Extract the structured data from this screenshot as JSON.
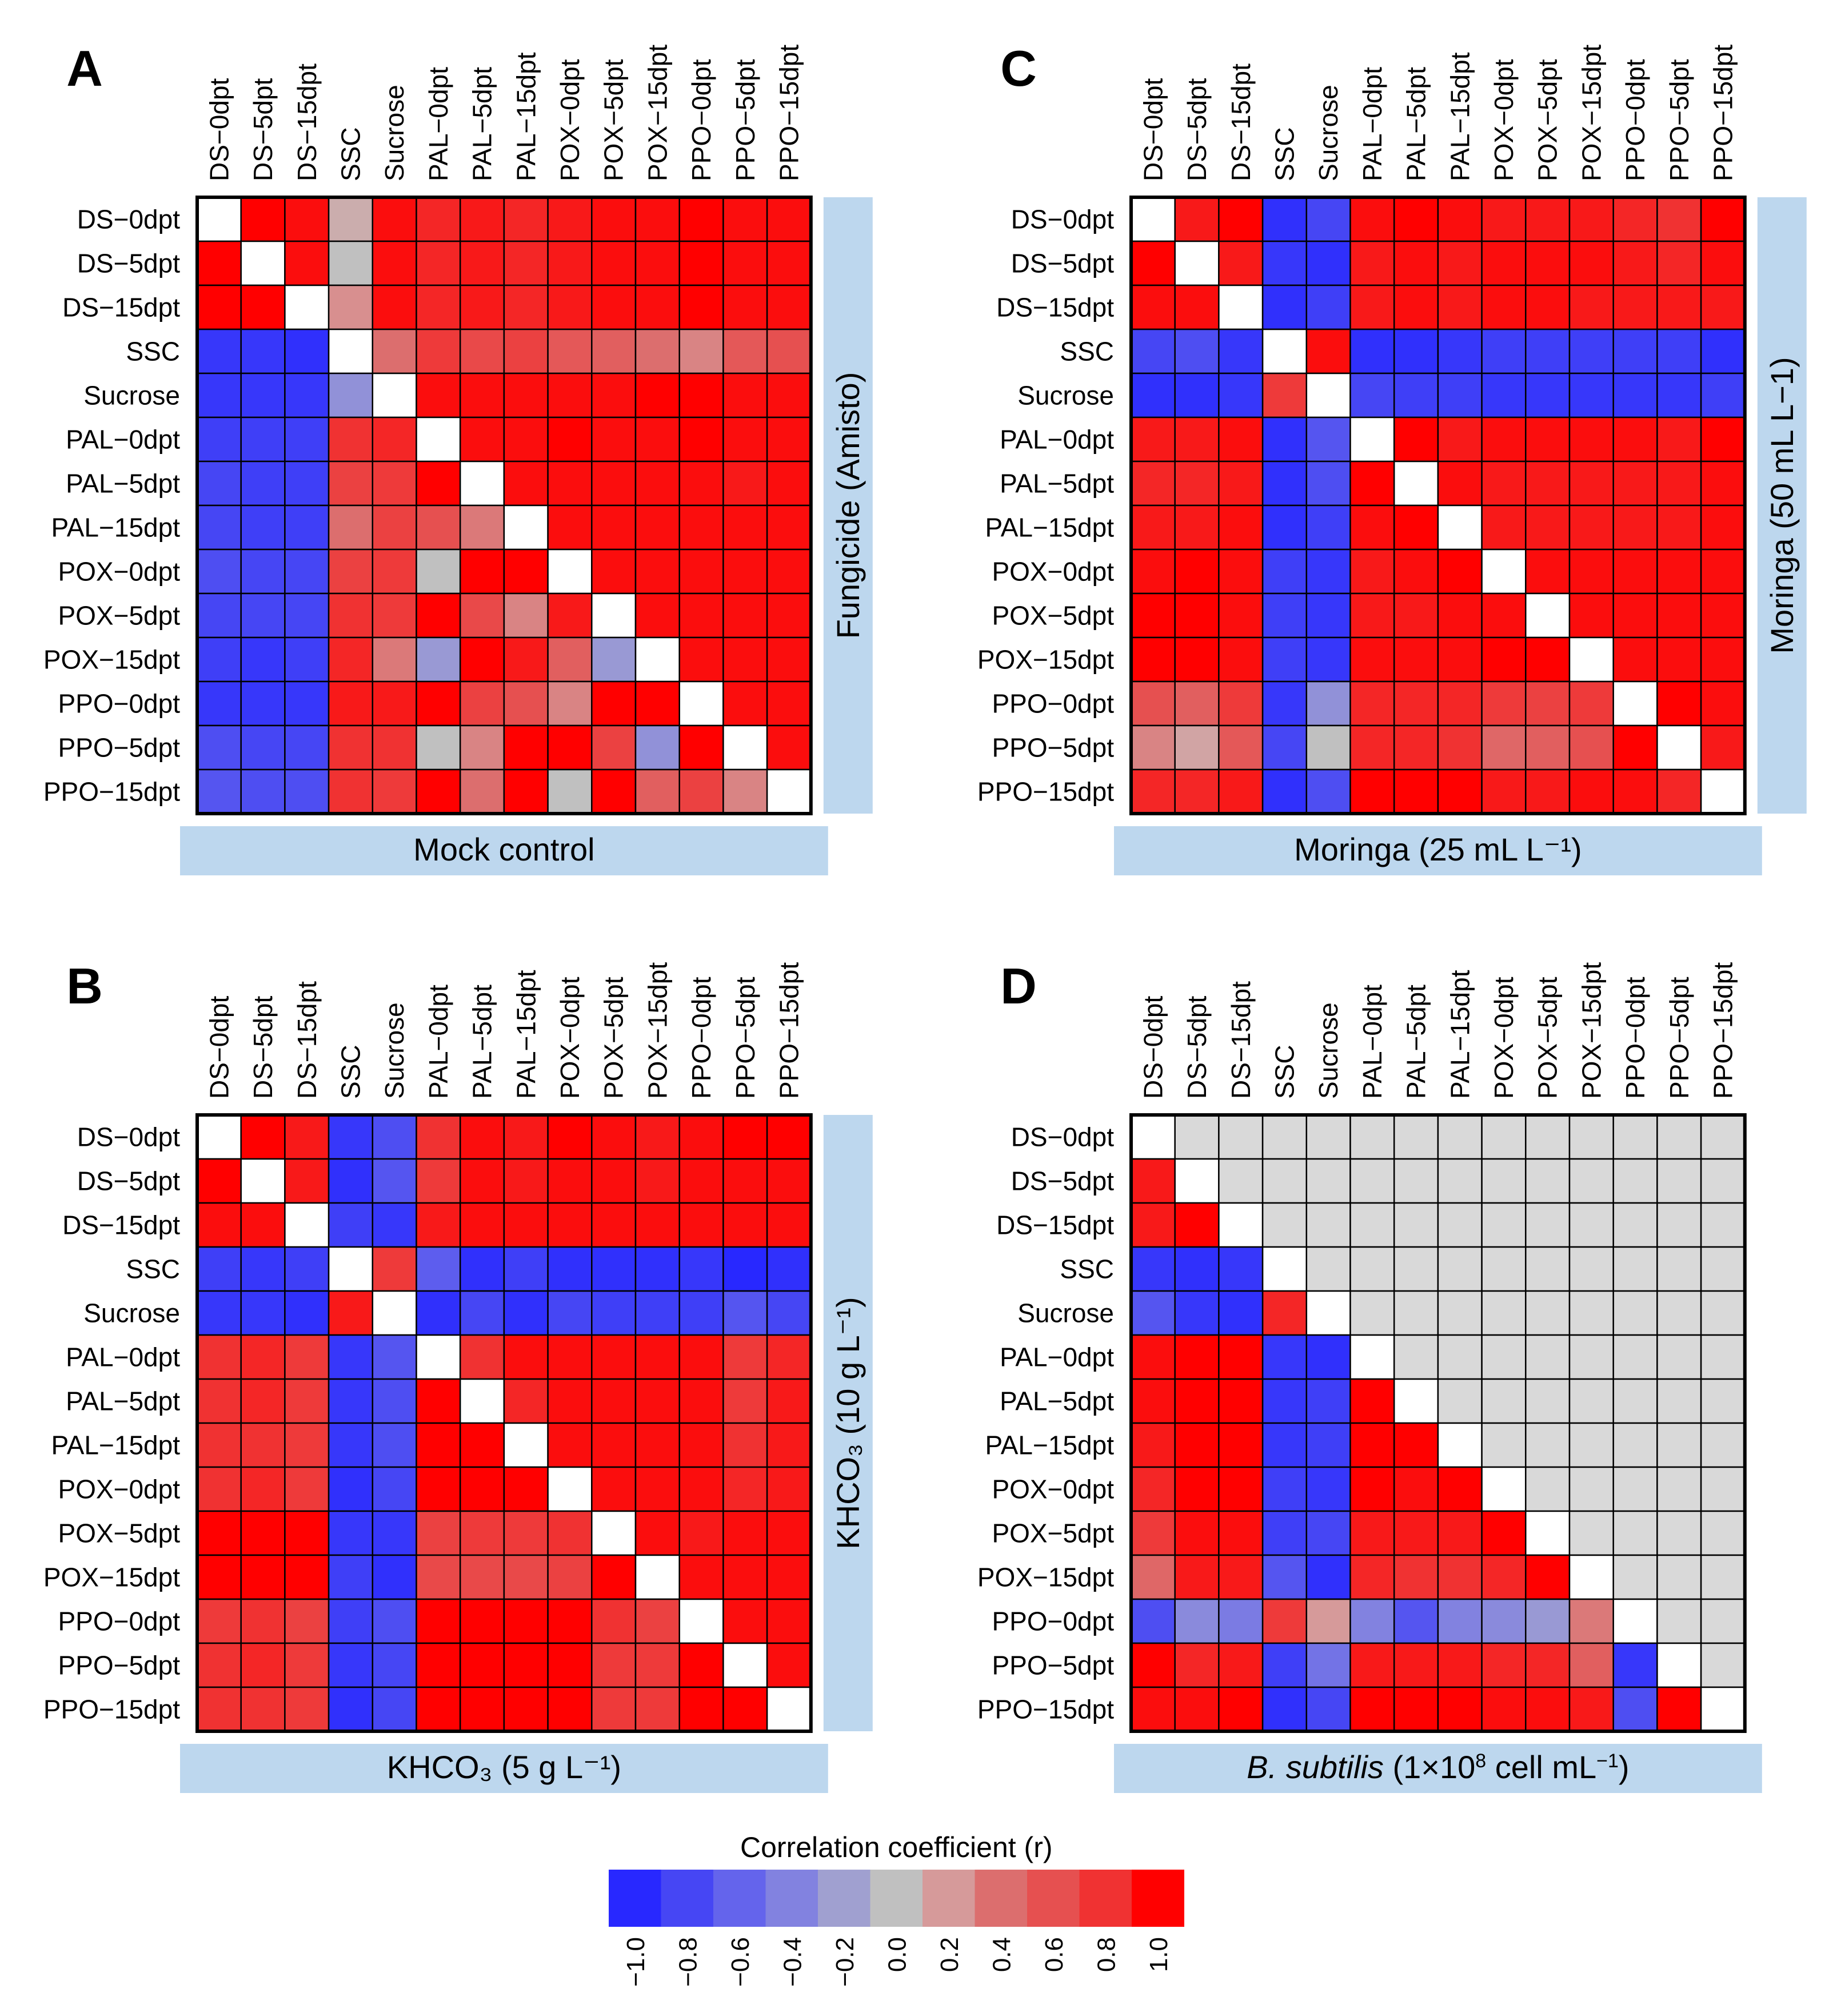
{
  "figure": {
    "variables": [
      "DS−0dpt",
      "DS−5dpt",
      "DS−15dpt",
      "SSC",
      "Sucrose",
      "PAL−0dpt",
      "PAL−5dpt",
      "PAL−15dpt",
      "POX−0dpt",
      "POX−5dpt",
      "POX−15dpt",
      "PPO−0dpt",
      "PPO−5dpt",
      "PPO−15dpt"
    ],
    "colors": {
      "band": "#bdd7ee",
      "border": "#000000",
      "diagonal": "#ffffff",
      "nonsignificant": "#d9d9d9",
      "scale": [
        "#ff0000",
        "#f03232",
        "#e65050",
        "#dc6e6e",
        "#d69a9a",
        "#c0c0c0",
        "#a0a0d0",
        "#8282e0",
        "#6464ec",
        "#4646f4",
        "#2828ff"
      ]
    }
  },
  "chart_data": [
    {
      "type": "heatmap",
      "panel": "A",
      "bottom_label": "Mock control",
      "right_label": "Fungicide (Amisto)",
      "upper_triangle_note": "upper triangle = Fungicide (Amisto); lower triangle = Mock control",
      "matrix": [
        [
          null,
          1.0,
          0.95,
          0.1,
          0.95,
          0.85,
          0.9,
          0.85,
          0.9,
          0.95,
          0.95,
          1.0,
          0.95,
          0.95
        ],
        [
          1.0,
          null,
          0.95,
          0.0,
          0.95,
          0.85,
          0.9,
          0.85,
          0.9,
          0.95,
          0.95,
          1.0,
          0.95,
          0.95
        ],
        [
          1.0,
          1.0,
          null,
          0.25,
          0.95,
          0.85,
          0.9,
          0.85,
          0.9,
          0.95,
          0.95,
          1.0,
          0.95,
          0.95
        ],
        [
          -0.9,
          -0.9,
          -0.95,
          null,
          0.4,
          0.75,
          0.65,
          0.7,
          0.55,
          0.5,
          0.4,
          0.3,
          0.55,
          0.6
        ],
        [
          -0.9,
          -0.9,
          -0.9,
          -0.3,
          null,
          0.95,
          0.95,
          0.95,
          0.95,
          0.95,
          1.0,
          1.0,
          0.95,
          0.95
        ],
        [
          -0.85,
          -0.85,
          -0.85,
          0.8,
          0.85,
          null,
          0.95,
          0.95,
          1.0,
          0.95,
          0.95,
          1.0,
          0.95,
          0.95
        ],
        [
          -0.8,
          -0.85,
          -0.85,
          0.7,
          0.75,
          1.0,
          null,
          0.95,
          0.95,
          0.95,
          0.95,
          0.95,
          0.9,
          0.95
        ],
        [
          -0.8,
          -0.85,
          -0.85,
          0.4,
          0.7,
          0.6,
          0.35,
          null,
          0.95,
          0.95,
          0.95,
          0.95,
          0.95,
          0.95
        ],
        [
          -0.75,
          -0.8,
          -0.8,
          0.7,
          0.75,
          0.0,
          1.0,
          1.0,
          null,
          0.95,
          0.95,
          0.95,
          0.95,
          0.95
        ],
        [
          -0.8,
          -0.8,
          -0.8,
          0.8,
          0.75,
          1.0,
          0.65,
          0.3,
          0.9,
          null,
          0.95,
          0.95,
          0.95,
          0.95
        ],
        [
          -0.85,
          -0.9,
          -0.85,
          0.85,
          0.35,
          -0.25,
          1.0,
          0.9,
          0.5,
          -0.25,
          null,
          0.95,
          0.95,
          0.95
        ],
        [
          -0.9,
          -0.9,
          -0.9,
          0.9,
          0.9,
          1.0,
          0.7,
          0.6,
          0.3,
          1.0,
          1.0,
          null,
          0.95,
          0.95
        ],
        [
          -0.75,
          -0.8,
          -0.8,
          0.8,
          0.8,
          0.0,
          0.3,
          1.0,
          1.0,
          0.7,
          -0.3,
          1.0,
          null,
          0.95
        ],
        [
          -0.7,
          -0.75,
          -0.75,
          0.8,
          0.75,
          1.0,
          0.4,
          1.0,
          0.0,
          1.0,
          0.5,
          0.7,
          0.3,
          null
        ]
      ]
    },
    {
      "type": "heatmap",
      "panel": "B",
      "bottom_label": "KHCO₃ (5 g L⁻¹)",
      "right_label": "KHCO₃ (10 g L⁻¹)",
      "upper_triangle_note": "upper triangle = KHCO3 (10 g L-1); lower triangle = KHCO3 (5 g L-1)",
      "matrix": [
        [
          null,
          1.0,
          0.9,
          -0.9,
          -0.75,
          0.8,
          0.95,
          0.9,
          1.0,
          0.95,
          0.9,
          0.95,
          1.0,
          1.0
        ],
        [
          1.0,
          null,
          0.9,
          -0.95,
          -0.7,
          0.75,
          0.95,
          0.9,
          0.95,
          0.95,
          0.9,
          0.95,
          0.95,
          0.95
        ],
        [
          0.95,
          0.95,
          null,
          -0.85,
          -0.9,
          0.9,
          0.95,
          0.95,
          0.95,
          0.95,
          0.95,
          0.95,
          0.95,
          0.95
        ],
        [
          -0.85,
          -0.9,
          -0.85,
          null,
          0.75,
          -0.65,
          -0.95,
          -0.85,
          -0.95,
          -0.95,
          -0.95,
          -0.9,
          -1.0,
          -0.95
        ],
        [
          -0.9,
          -0.9,
          -0.95,
          0.9,
          null,
          -0.95,
          -0.8,
          -0.95,
          -0.8,
          -0.85,
          -0.85,
          -0.85,
          -0.7,
          -0.8
        ],
        [
          0.8,
          0.85,
          0.75,
          -0.9,
          -0.7,
          null,
          0.8,
          0.95,
          0.95,
          0.95,
          0.95,
          0.95,
          0.75,
          0.85
        ],
        [
          0.8,
          0.85,
          0.75,
          -0.9,
          -0.75,
          1.0,
          null,
          0.85,
          0.95,
          0.95,
          0.95,
          0.95,
          0.75,
          0.9
        ],
        [
          0.8,
          0.8,
          0.75,
          -0.9,
          -0.75,
          1.0,
          1.0,
          null,
          0.95,
          0.95,
          0.95,
          0.95,
          0.8,
          0.9
        ],
        [
          0.8,
          0.85,
          0.75,
          -0.95,
          -0.8,
          1.0,
          1.0,
          1.0,
          null,
          0.95,
          0.95,
          0.95,
          0.85,
          0.9
        ],
        [
          1.0,
          1.0,
          1.0,
          -0.9,
          -0.9,
          0.7,
          0.75,
          0.75,
          0.8,
          null,
          0.95,
          0.9,
          0.95,
          0.95
        ],
        [
          1.0,
          1.0,
          1.0,
          -0.85,
          -0.95,
          0.65,
          0.65,
          0.65,
          0.7,
          1.0,
          null,
          0.95,
          0.95,
          0.95
        ],
        [
          0.75,
          0.8,
          0.7,
          -0.85,
          -0.75,
          1.0,
          1.0,
          1.0,
          1.0,
          0.8,
          0.7,
          null,
          0.95,
          0.95
        ],
        [
          0.8,
          0.85,
          0.75,
          -0.9,
          -0.8,
          1.0,
          1.0,
          1.0,
          1.0,
          0.75,
          0.75,
          1.0,
          null,
          0.95
        ],
        [
          0.8,
          0.8,
          0.75,
          -0.95,
          -0.8,
          1.0,
          1.0,
          1.0,
          1.0,
          0.75,
          0.75,
          1.0,
          1.0,
          null
        ]
      ]
    },
    {
      "type": "heatmap",
      "panel": "C",
      "bottom_label": "Moringa (25 mL L⁻¹)",
      "right_label": "Moringa (50 mL L−1)",
      "upper_triangle_note": "upper triangle = Moringa (50 mL L-1); lower triangle = Moringa (25 mL L-1)",
      "matrix": [
        [
          null,
          0.9,
          1.0,
          -0.95,
          -0.8,
          0.95,
          1.0,
          0.95,
          0.9,
          0.9,
          0.9,
          0.85,
          0.8,
          1.0
        ],
        [
          1.0,
          null,
          0.9,
          -0.9,
          -0.95,
          0.9,
          0.95,
          0.9,
          0.95,
          0.95,
          0.95,
          0.9,
          0.85,
          0.95
        ],
        [
          0.95,
          0.95,
          null,
          -0.95,
          -0.85,
          0.9,
          0.95,
          0.9,
          0.95,
          0.95,
          0.9,
          0.9,
          0.9,
          0.9
        ],
        [
          -0.8,
          -0.75,
          -0.9,
          null,
          0.95,
          -0.95,
          -0.95,
          -0.9,
          -0.85,
          -0.85,
          -0.85,
          -0.85,
          -0.85,
          -0.95
        ],
        [
          -0.95,
          -0.95,
          -0.9,
          0.75,
          null,
          -0.8,
          -0.85,
          -0.85,
          -0.9,
          -0.9,
          -0.9,
          -0.9,
          -0.9,
          -0.85
        ],
        [
          0.9,
          0.9,
          0.95,
          -0.95,
          -0.7,
          null,
          1.0,
          0.9,
          0.95,
          0.95,
          0.95,
          0.95,
          0.9,
          1.0
        ],
        [
          0.85,
          0.85,
          0.9,
          -0.95,
          -0.75,
          1.0,
          null,
          0.95,
          0.9,
          0.9,
          0.9,
          0.9,
          0.9,
          0.95
        ],
        [
          0.9,
          0.9,
          0.95,
          -0.95,
          -0.85,
          0.95,
          1.0,
          null,
          0.9,
          0.9,
          0.9,
          0.9,
          0.9,
          0.95
        ],
        [
          0.95,
          1.0,
          0.95,
          -0.85,
          -0.9,
          0.9,
          0.95,
          1.0,
          null,
          0.95,
          0.95,
          0.95,
          0.95,
          0.95
        ],
        [
          1.0,
          1.0,
          0.95,
          -0.85,
          -0.9,
          0.9,
          0.9,
          0.95,
          0.95,
          null,
          0.95,
          0.95,
          0.95,
          0.95
        ],
        [
          1.0,
          1.0,
          0.95,
          -0.85,
          -0.9,
          0.95,
          0.95,
          0.95,
          1.0,
          1.0,
          null,
          0.95,
          0.95,
          0.95
        ],
        [
          0.6,
          0.5,
          0.75,
          -0.9,
          -0.3,
          0.85,
          0.85,
          0.85,
          0.75,
          0.7,
          0.75,
          null,
          1.0,
          0.95
        ],
        [
          0.3,
          0.15,
          0.55,
          -0.8,
          0.0,
          0.85,
          0.85,
          0.8,
          0.45,
          0.5,
          0.6,
          1.0,
          null,
          0.9
        ],
        [
          0.85,
          0.85,
          0.9,
          -0.95,
          -0.75,
          1.0,
          1.0,
          1.0,
          0.9,
          0.9,
          0.95,
          0.95,
          0.85,
          null
        ]
      ]
    },
    {
      "type": "heatmap",
      "panel": "D",
      "bottom_label_parts": [
        "B. subtilis",
        " (1×10",
        "8",
        " cell mL",
        "−1",
        ")"
      ],
      "upper_triangle_note": "upper triangle not shown (light grey)",
      "matrix": [
        [
          null,
          "ns",
          "ns",
          "ns",
          "ns",
          "ns",
          "ns",
          "ns",
          "ns",
          "ns",
          "ns",
          "ns",
          "ns",
          "ns"
        ],
        [
          0.9,
          null,
          "ns",
          "ns",
          "ns",
          "ns",
          "ns",
          "ns",
          "ns",
          "ns",
          "ns",
          "ns",
          "ns",
          "ns"
        ],
        [
          0.9,
          1.0,
          null,
          "ns",
          "ns",
          "ns",
          "ns",
          "ns",
          "ns",
          "ns",
          "ns",
          "ns",
          "ns",
          "ns"
        ],
        [
          -0.9,
          -0.95,
          -0.9,
          null,
          "ns",
          "ns",
          "ns",
          "ns",
          "ns",
          "ns",
          "ns",
          "ns",
          "ns",
          "ns"
        ],
        [
          -0.7,
          -0.9,
          -0.95,
          0.85,
          null,
          "ns",
          "ns",
          "ns",
          "ns",
          "ns",
          "ns",
          "ns",
          "ns",
          "ns"
        ],
        [
          0.95,
          1.0,
          1.0,
          -0.9,
          -0.95,
          null,
          "ns",
          "ns",
          "ns",
          "ns",
          "ns",
          "ns",
          "ns",
          "ns"
        ],
        [
          0.95,
          1.0,
          1.0,
          -0.9,
          -0.85,
          1.0,
          null,
          "ns",
          "ns",
          "ns",
          "ns",
          "ns",
          "ns",
          "ns"
        ],
        [
          0.9,
          1.0,
          1.0,
          -0.9,
          -0.85,
          1.0,
          1.0,
          null,
          "ns",
          "ns",
          "ns",
          "ns",
          "ns",
          "ns"
        ],
        [
          0.85,
          1.0,
          1.0,
          -0.85,
          -0.9,
          1.0,
          0.95,
          1.0,
          null,
          "ns",
          "ns",
          "ns",
          "ns",
          "ns"
        ],
        [
          0.75,
          0.95,
          0.95,
          -0.85,
          -0.8,
          0.9,
          0.9,
          0.9,
          1.0,
          null,
          "ns",
          "ns",
          "ns",
          "ns"
        ],
        [
          0.45,
          0.9,
          0.9,
          -0.7,
          -0.95,
          0.85,
          0.8,
          0.8,
          0.85,
          1.0,
          null,
          "ns",
          "ns",
          "ns"
        ],
        [
          -0.75,
          -0.35,
          -0.45,
          0.75,
          0.2,
          -0.4,
          -0.7,
          -0.4,
          -0.35,
          -0.25,
          0.35,
          null,
          "ns",
          "ns"
        ],
        [
          1.0,
          0.85,
          0.9,
          -0.85,
          -0.5,
          0.9,
          0.9,
          0.9,
          0.85,
          0.85,
          0.5,
          -0.9,
          null,
          "ns"
        ],
        [
          0.95,
          0.95,
          1.0,
          -0.95,
          -0.8,
          1.0,
          1.0,
          1.0,
          0.95,
          0.95,
          0.9,
          -0.75,
          1.0,
          null
        ]
      ]
    }
  ],
  "legend": {
    "title": "Correlation coefficient (r)",
    "ticks": [
      "−1.0",
      "−0.8",
      "−0.6",
      "−0.4",
      "−0.2",
      "0.0",
      "0.2",
      "0.4",
      "0.6",
      "0.8",
      "1.0"
    ]
  }
}
